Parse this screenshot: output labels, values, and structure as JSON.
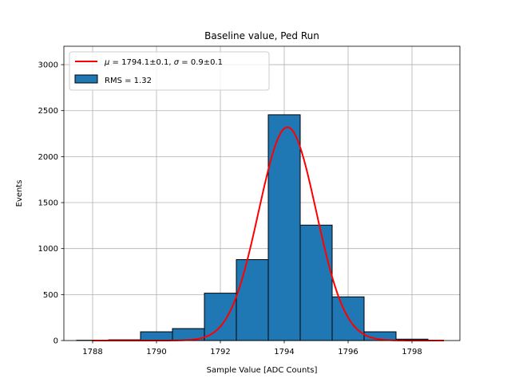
{
  "chart_data": {
    "type": "bar",
    "title": "Baseline value, Ped Run",
    "xlabel": "Sample Value [ADC Counts]",
    "ylabel": "Events",
    "xlim": [
      1787.1,
      1799.5
    ],
    "ylim": [
      0,
      3200
    ],
    "grid": true,
    "x_ticks": [
      1788,
      1790,
      1792,
      1794,
      1796,
      1798
    ],
    "y_ticks": [
      0,
      500,
      1000,
      1500,
      2000,
      2500,
      3000
    ],
    "bins": [
      {
        "x0": 1787.5,
        "x1": 1788.5,
        "count": 3
      },
      {
        "x0": 1788.5,
        "x1": 1789.5,
        "count": 8
      },
      {
        "x0": 1789.5,
        "x1": 1790.5,
        "count": 95
      },
      {
        "x0": 1790.5,
        "x1": 1791.5,
        "count": 130
      },
      {
        "x0": 1791.5,
        "x1": 1792.5,
        "count": 515
      },
      {
        "x0": 1792.5,
        "x1": 1793.5,
        "count": 880
      },
      {
        "x0": 1793.5,
        "x1": 1794.5,
        "count": 2455
      },
      {
        "x0": 1794.5,
        "x1": 1795.5,
        "count": 1255
      },
      {
        "x0": 1795.5,
        "x1": 1796.5,
        "count": 475
      },
      {
        "x0": 1796.5,
        "x1": 1797.5,
        "count": 95
      },
      {
        "x0": 1797.5,
        "x1": 1798.5,
        "count": 15
      }
    ],
    "fit": {
      "type": "gaussian",
      "mu": 1794.1,
      "sigma": 0.9,
      "amplitude": 2320,
      "x_range": [
        1788,
        1799
      ]
    },
    "legend": {
      "position": "top-left",
      "entries": [
        {
          "kind": "line",
          "color": "#ff0000",
          "mu_symbol": "μ",
          "mu_text": " = 1794.1±0.1, ",
          "sigma_symbol": "σ",
          "sigma_text": " = 0.9±0.1"
        },
        {
          "kind": "patch",
          "color": "#1f77b4",
          "label": "RMS = 1.32"
        }
      ]
    },
    "colors": {
      "bar": "#1f77b4",
      "bar_edge": "#000000",
      "fit": "#ff0000",
      "grid": "#b0b0b0"
    }
  }
}
